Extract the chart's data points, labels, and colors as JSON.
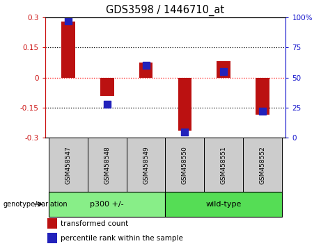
{
  "title": "GDS3598 / 1446710_at",
  "samples": [
    "GSM458547",
    "GSM458548",
    "GSM458549",
    "GSM458550",
    "GSM458551",
    "GSM458552"
  ],
  "transformed_count": [
    0.28,
    -0.09,
    0.075,
    -0.265,
    0.08,
    -0.185
  ],
  "percentile_rank": [
    97,
    28,
    60,
    5,
    55,
    22
  ],
  "ylim_left": [
    -0.3,
    0.3
  ],
  "ylim_right": [
    0,
    100
  ],
  "yticks_left": [
    -0.3,
    -0.15,
    0,
    0.15,
    0.3
  ],
  "yticks_right": [
    0,
    25,
    50,
    75,
    100
  ],
  "ytick_labels_left": [
    "-0.3",
    "-0.15",
    "0",
    "0.15",
    "0.3"
  ],
  "ytick_labels_right": [
    "0",
    "25",
    "50",
    "75",
    "100%"
  ],
  "hlines_dotted": [
    -0.15,
    0.15
  ],
  "bar_color": "#bb1111",
  "dot_color": "#2222bb",
  "bar_width": 0.35,
  "dot_size": 55,
  "groups": [
    {
      "label": "p300 +/-",
      "start": 0,
      "end": 2,
      "color": "#88ee88"
    },
    {
      "label": "wild-type",
      "start": 3,
      "end": 5,
      "color": "#55dd55"
    }
  ],
  "group_row_label": "genotype/variation",
  "legend_red_label": "transformed count",
  "legend_blue_label": "percentile rank within the sample",
  "axis_color_left": "#cc1111",
  "axis_color_right": "#1111cc",
  "sample_bg_color": "#cccccc",
  "plot_bg": "#ffffff"
}
